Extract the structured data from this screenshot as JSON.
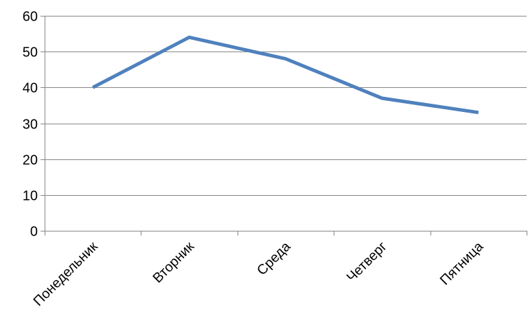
{
  "chart_data": {
    "type": "line",
    "categories": [
      "Понедельник",
      "Вторник",
      "Среда",
      "Четверг",
      "Пятница"
    ],
    "series": [
      {
        "values": [
          40,
          54,
          48,
          37,
          33
        ]
      }
    ],
    "y_ticks": [
      "0",
      "10",
      "20",
      "30",
      "40",
      "50",
      "60"
    ],
    "ylim": [
      0,
      60
    ],
    "grid": true,
    "legend": "none",
    "colors": {
      "line": "#4F81BD",
      "grid": "#868686",
      "axis": "#868686"
    }
  }
}
